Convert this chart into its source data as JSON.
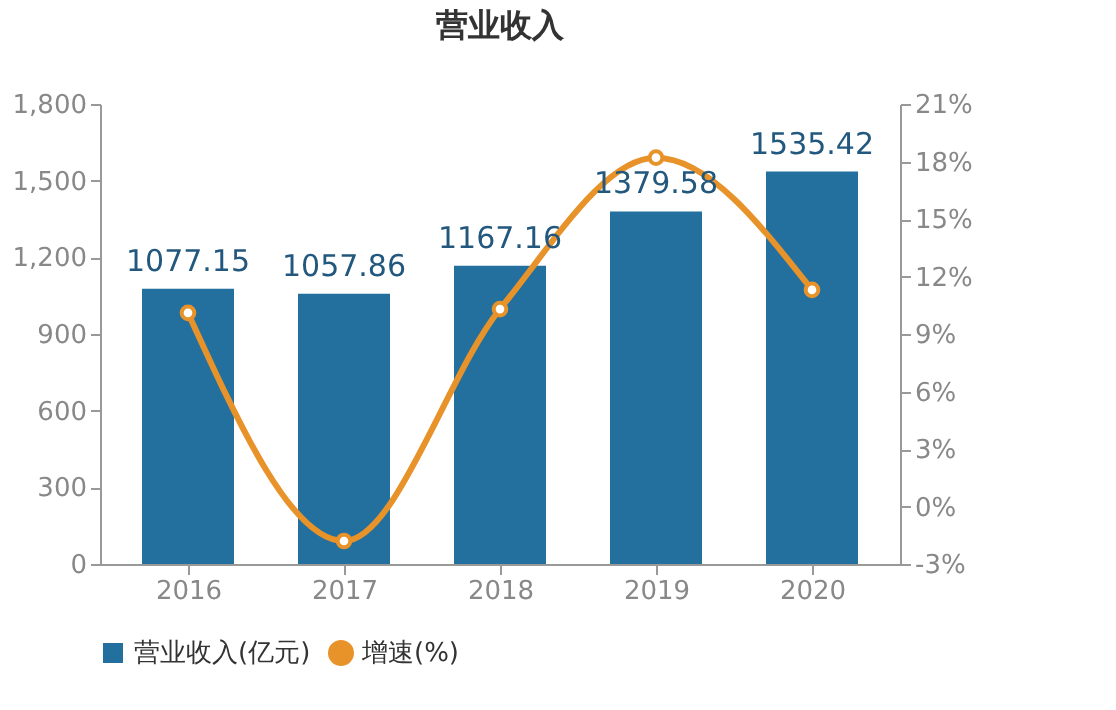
{
  "chart_data": {
    "type": "bar",
    "title": "营业收入",
    "categories": [
      "2016",
      "2017",
      "2018",
      "2019",
      "2020"
    ],
    "series": [
      {
        "name": "营业收入(亿元)",
        "color": "#23709e",
        "values": [
          1077.15,
          1057.86,
          1167.16,
          1379.58,
          1535.42
        ],
        "value_labels": [
          "1077.15",
          "1057.86",
          "1167.16",
          "1379.58",
          "1535.42"
        ]
      },
      {
        "name": "增速(%)",
        "type": "line",
        "axis": "y2",
        "color": "#e8922a",
        "marker": "circle",
        "values": [
          10.1,
          -1.8,
          10.3,
          18.2,
          11.3
        ]
      }
    ],
    "ylim": [
      0,
      1800
    ],
    "yticks": [
      {
        "value": 0,
        "label": "0"
      },
      {
        "value": 300,
        "label": "300"
      },
      {
        "value": 600,
        "label": "600"
      },
      {
        "value": 900,
        "label": "900"
      },
      {
        "value": 1200,
        "label": "1,200"
      },
      {
        "value": 1500,
        "label": "1,500"
      },
      {
        "value": 1800,
        "label": "1,800"
      }
    ],
    "y2lim": [
      -3,
      21
    ],
    "y2ticks": [
      {
        "value": -3,
        "label": "-3%"
      },
      {
        "value": 0,
        "label": "0%"
      },
      {
        "value": 3,
        "label": "3%"
      },
      {
        "value": 6,
        "label": "6%"
      },
      {
        "value": 9,
        "label": "9%"
      },
      {
        "value": 12,
        "label": "12%"
      },
      {
        "value": 15,
        "label": "15%"
      },
      {
        "value": 18,
        "label": "18%"
      },
      {
        "value": 21,
        "label": "21%"
      }
    ],
    "grid": false,
    "legend": "bottom"
  }
}
